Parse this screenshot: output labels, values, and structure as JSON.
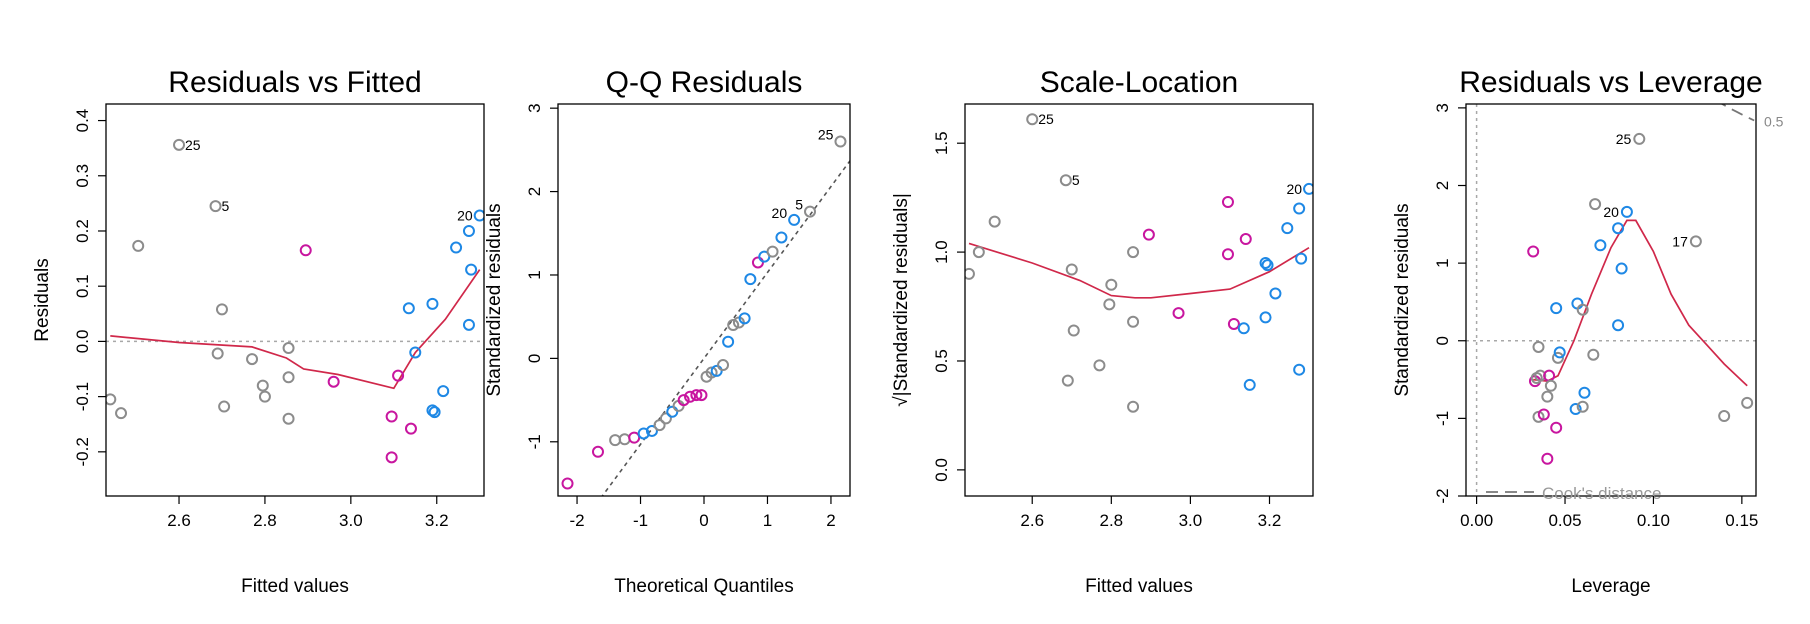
{
  "colors": {
    "grey": "#8c8c8c",
    "magenta": "#c8169f",
    "blue": "#1e88e5",
    "smooth": "#d0284a",
    "reference_line": "#a8a8a8",
    "cooks_distance": "#777777"
  },
  "chart_data": [
    {
      "type": "scatter",
      "title": "Residuals vs Fitted",
      "xlabel": "Fitted values",
      "ylabel": "Residuals",
      "xlim": [
        2.43,
        3.31
      ],
      "ylim": [
        -0.28,
        0.43
      ],
      "xticks": [
        "2.6",
        "2.8",
        "3.0",
        "3.2"
      ],
      "yticks": [
        "-0.2",
        "-0.1",
        "0.0",
        "0.1",
        "0.2",
        "0.3",
        "0.4"
      ],
      "reference_line_y": 0,
      "points": [
        {
          "x": 2.44,
          "y": -0.105,
          "g": "grey"
        },
        {
          "x": 2.465,
          "y": -0.13,
          "g": "grey"
        },
        {
          "x": 2.505,
          "y": 0.173,
          "g": "grey"
        },
        {
          "x": 2.6,
          "y": 0.356,
          "g": "grey",
          "label": "25"
        },
        {
          "x": 2.685,
          "y": 0.245,
          "g": "grey",
          "label": "5"
        },
        {
          "x": 2.69,
          "y": -0.022,
          "g": "grey"
        },
        {
          "x": 2.7,
          "y": 0.058,
          "g": "grey"
        },
        {
          "x": 2.705,
          "y": -0.118,
          "g": "grey"
        },
        {
          "x": 2.77,
          "y": -0.032,
          "g": "grey"
        },
        {
          "x": 2.795,
          "y": -0.08,
          "g": "grey"
        },
        {
          "x": 2.8,
          "y": -0.1,
          "g": "grey"
        },
        {
          "x": 2.855,
          "y": -0.012,
          "g": "grey"
        },
        {
          "x": 2.855,
          "y": -0.065,
          "g": "grey"
        },
        {
          "x": 2.855,
          "y": -0.14,
          "g": "grey"
        },
        {
          "x": 2.895,
          "y": 0.165,
          "g": "magenta"
        },
        {
          "x": 2.96,
          "y": -0.073,
          "g": "magenta"
        },
        {
          "x": 3.095,
          "y": -0.136,
          "g": "magenta"
        },
        {
          "x": 3.095,
          "y": -0.21,
          "g": "magenta"
        },
        {
          "x": 3.11,
          "y": -0.062,
          "g": "magenta"
        },
        {
          "x": 3.14,
          "y": -0.158,
          "g": "magenta"
        },
        {
          "x": 3.135,
          "y": 0.06,
          "g": "blue"
        },
        {
          "x": 3.15,
          "y": -0.02,
          "g": "blue"
        },
        {
          "x": 3.19,
          "y": 0.068,
          "g": "blue"
        },
        {
          "x": 3.19,
          "y": -0.125,
          "g": "blue"
        },
        {
          "x": 3.195,
          "y": -0.128,
          "g": "blue"
        },
        {
          "x": 3.215,
          "y": -0.09,
          "g": "blue"
        },
        {
          "x": 3.245,
          "y": 0.17,
          "g": "blue"
        },
        {
          "x": 3.275,
          "y": 0.2,
          "g": "blue"
        },
        {
          "x": 3.28,
          "y": 0.13,
          "g": "blue"
        },
        {
          "x": 3.275,
          "y": 0.03,
          "g": "blue"
        },
        {
          "x": 3.3,
          "y": 0.228,
          "g": "blue",
          "label": "20"
        }
      ],
      "smooth": [
        [
          2.44,
          0.01
        ],
        [
          2.6,
          -0.002
        ],
        [
          2.77,
          -0.01
        ],
        [
          2.85,
          -0.03
        ],
        [
          2.89,
          -0.05
        ],
        [
          2.97,
          -0.06
        ],
        [
          3.1,
          -0.085
        ],
        [
          3.15,
          -0.02
        ],
        [
          3.22,
          0.04
        ],
        [
          3.3,
          0.13
        ]
      ]
    },
    {
      "type": "scatter",
      "title": "Q-Q Residuals",
      "xlabel": "Theoretical Quantiles",
      "ylabel": "Standardized residuals",
      "xlim": [
        -2.3,
        2.3
      ],
      "ylim": [
        -1.65,
        3.05
      ],
      "xticks": [
        "-2",
        "-1",
        "0",
        "1",
        "2"
      ],
      "yticks": [
        "-1",
        "0",
        "1",
        "2",
        "3"
      ],
      "qq_line": {
        "slope": 1.03,
        "intercept": 0.0
      },
      "points": [
        {
          "x": -2.15,
          "y": -1.5,
          "g": "magenta"
        },
        {
          "x": -1.67,
          "y": -1.12,
          "g": "magenta"
        },
        {
          "x": -1.4,
          "y": -0.98,
          "g": "grey"
        },
        {
          "x": -1.25,
          "y": -0.97,
          "g": "grey"
        },
        {
          "x": -1.1,
          "y": -0.95,
          "g": "magenta"
        },
        {
          "x": -0.95,
          "y": -0.9,
          "g": "blue"
        },
        {
          "x": -0.82,
          "y": -0.87,
          "g": "blue"
        },
        {
          "x": -0.7,
          "y": -0.8,
          "g": "grey"
        },
        {
          "x": -0.6,
          "y": -0.72,
          "g": "grey"
        },
        {
          "x": -0.5,
          "y": -0.64,
          "g": "blue"
        },
        {
          "x": -0.4,
          "y": -0.57,
          "g": "grey"
        },
        {
          "x": -0.32,
          "y": -0.5,
          "g": "magenta"
        },
        {
          "x": -0.22,
          "y": -0.46,
          "g": "magenta"
        },
        {
          "x": -0.12,
          "y": -0.44,
          "g": "magenta"
        },
        {
          "x": -0.04,
          "y": -0.44,
          "g": "magenta"
        },
        {
          "x": 0.04,
          "y": -0.22,
          "g": "grey"
        },
        {
          "x": 0.12,
          "y": -0.17,
          "g": "grey"
        },
        {
          "x": 0.2,
          "y": -0.15,
          "g": "blue"
        },
        {
          "x": 0.3,
          "y": -0.08,
          "g": "grey"
        },
        {
          "x": 0.38,
          "y": 0.2,
          "g": "blue"
        },
        {
          "x": 0.46,
          "y": 0.4,
          "g": "grey"
        },
        {
          "x": 0.55,
          "y": 0.43,
          "g": "grey"
        },
        {
          "x": 0.64,
          "y": 0.48,
          "g": "blue"
        },
        {
          "x": 0.73,
          "y": 0.95,
          "g": "blue"
        },
        {
          "x": 0.85,
          "y": 1.15,
          "g": "magenta"
        },
        {
          "x": 0.95,
          "y": 1.22,
          "g": "blue"
        },
        {
          "x": 1.08,
          "y": 1.28,
          "g": "grey"
        },
        {
          "x": 1.22,
          "y": 1.45,
          "g": "blue"
        },
        {
          "x": 1.42,
          "y": 1.66,
          "g": "blue",
          "label": "20"
        },
        {
          "x": 1.67,
          "y": 1.76,
          "g": "grey",
          "label": "5"
        },
        {
          "x": 2.15,
          "y": 2.6,
          "g": "grey",
          "label": "25"
        }
      ]
    },
    {
      "type": "scatter",
      "title": "Scale-Location",
      "xlabel": "Fitted values",
      "ylabel": "√|Standardized residuals|",
      "xlim": [
        2.43,
        3.31
      ],
      "ylim": [
        -0.12,
        1.68
      ],
      "xticks": [
        "2.6",
        "2.8",
        "3.0",
        "3.2"
      ],
      "yticks": [
        "0.0",
        "0.5",
        "1.0",
        "1.5"
      ],
      "points": [
        {
          "x": 2.44,
          "y": 0.9,
          "g": "grey"
        },
        {
          "x": 2.465,
          "y": 1.0,
          "g": "grey"
        },
        {
          "x": 2.505,
          "y": 1.14,
          "g": "grey"
        },
        {
          "x": 2.6,
          "y": 1.61,
          "g": "grey",
          "label": "25"
        },
        {
          "x": 2.685,
          "y": 1.33,
          "g": "grey",
          "label": "5"
        },
        {
          "x": 2.69,
          "y": 0.41,
          "g": "grey"
        },
        {
          "x": 2.7,
          "y": 0.92,
          "g": "grey"
        },
        {
          "x": 2.705,
          "y": 0.64,
          "g": "grey"
        },
        {
          "x": 2.77,
          "y": 0.48,
          "g": "grey"
        },
        {
          "x": 2.795,
          "y": 0.76,
          "g": "grey"
        },
        {
          "x": 2.8,
          "y": 0.85,
          "g": "grey"
        },
        {
          "x": 2.855,
          "y": 1.0,
          "g": "grey"
        },
        {
          "x": 2.855,
          "y": 0.68,
          "g": "grey"
        },
        {
          "x": 2.855,
          "y": 0.29,
          "g": "grey"
        },
        {
          "x": 2.895,
          "y": 1.08,
          "g": "magenta"
        },
        {
          "x": 2.97,
          "y": 0.72,
          "g": "magenta"
        },
        {
          "x": 3.095,
          "y": 1.23,
          "g": "magenta"
        },
        {
          "x": 3.095,
          "y": 0.99,
          "g": "magenta"
        },
        {
          "x": 3.11,
          "y": 0.67,
          "g": "magenta"
        },
        {
          "x": 3.14,
          "y": 1.06,
          "g": "magenta"
        },
        {
          "x": 3.135,
          "y": 0.65,
          "g": "blue"
        },
        {
          "x": 3.15,
          "y": 0.39,
          "g": "blue"
        },
        {
          "x": 3.19,
          "y": 0.95,
          "g": "blue"
        },
        {
          "x": 3.19,
          "y": 0.7,
          "g": "blue"
        },
        {
          "x": 3.195,
          "y": 0.94,
          "g": "blue"
        },
        {
          "x": 3.215,
          "y": 0.81,
          "g": "blue"
        },
        {
          "x": 3.245,
          "y": 1.11,
          "g": "blue"
        },
        {
          "x": 3.275,
          "y": 1.2,
          "g": "blue"
        },
        {
          "x": 3.28,
          "y": 0.97,
          "g": "blue"
        },
        {
          "x": 3.275,
          "y": 0.46,
          "g": "blue"
        },
        {
          "x": 3.3,
          "y": 1.29,
          "g": "blue",
          "label": "20"
        }
      ],
      "smooth": [
        [
          2.44,
          1.04
        ],
        [
          2.6,
          0.95
        ],
        [
          2.72,
          0.87
        ],
        [
          2.8,
          0.8
        ],
        [
          2.86,
          0.79
        ],
        [
          2.9,
          0.79
        ],
        [
          3.0,
          0.81
        ],
        [
          3.1,
          0.83
        ],
        [
          3.2,
          0.91
        ],
        [
          3.3,
          1.02
        ]
      ]
    },
    {
      "type": "scatter",
      "title": "Residuals vs Leverage",
      "xlabel": "Leverage",
      "ylabel": "Standardized residuals",
      "xlim": [
        -0.006,
        0.158
      ],
      "ylim": [
        -2.0,
        3.05
      ],
      "xticks": [
        "0.00",
        "0.05",
        "0.10",
        "0.15"
      ],
      "yticks": [
        "-2",
        "-1",
        "0",
        "1",
        "2",
        "3"
      ],
      "reference_line_y": 0,
      "reference_line_x": 0,
      "cooks_contour_label": "0.5",
      "legend_text": "Cook's distance",
      "points": [
        {
          "x": 0.032,
          "y": 1.15,
          "g": "magenta"
        },
        {
          "x": 0.033,
          "y": -0.52,
          "g": "magenta"
        },
        {
          "x": 0.034,
          "y": -0.48,
          "g": "grey"
        },
        {
          "x": 0.035,
          "y": -0.08,
          "g": "grey"
        },
        {
          "x": 0.036,
          "y": -0.45,
          "g": "grey"
        },
        {
          "x": 0.035,
          "y": -0.98,
          "g": "grey"
        },
        {
          "x": 0.038,
          "y": -0.95,
          "g": "magenta"
        },
        {
          "x": 0.04,
          "y": -0.72,
          "g": "grey"
        },
        {
          "x": 0.041,
          "y": -0.45,
          "g": "magenta"
        },
        {
          "x": 0.04,
          "y": -1.52,
          "g": "magenta"
        },
        {
          "x": 0.042,
          "y": -0.58,
          "g": "grey"
        },
        {
          "x": 0.045,
          "y": -1.12,
          "g": "magenta"
        },
        {
          "x": 0.045,
          "y": 0.42,
          "g": "blue"
        },
        {
          "x": 0.046,
          "y": -0.22,
          "g": "grey"
        },
        {
          "x": 0.047,
          "y": -0.15,
          "g": "blue"
        },
        {
          "x": 0.056,
          "y": -0.88,
          "g": "blue"
        },
        {
          "x": 0.057,
          "y": 0.48,
          "g": "blue"
        },
        {
          "x": 0.06,
          "y": 0.4,
          "g": "grey"
        },
        {
          "x": 0.06,
          "y": -0.85,
          "g": "grey"
        },
        {
          "x": 0.061,
          "y": -0.67,
          "g": "blue"
        },
        {
          "x": 0.066,
          "y": -0.18,
          "g": "grey"
        },
        {
          "x": 0.067,
          "y": 1.76,
          "g": "grey"
        },
        {
          "x": 0.07,
          "y": 1.23,
          "g": "blue"
        },
        {
          "x": 0.08,
          "y": 0.2,
          "g": "blue"
        },
        {
          "x": 0.08,
          "y": 1.45,
          "g": "blue"
        },
        {
          "x": 0.082,
          "y": 0.93,
          "g": "blue"
        },
        {
          "x": 0.085,
          "y": 1.66,
          "g": "blue",
          "label": "20"
        },
        {
          "x": 0.092,
          "y": 2.6,
          "g": "grey",
          "label": "25"
        },
        {
          "x": 0.124,
          "y": 1.28,
          "g": "grey",
          "label": "17"
        },
        {
          "x": 0.14,
          "y": -0.97,
          "g": "grey"
        },
        {
          "x": 0.153,
          "y": -0.8,
          "g": "grey"
        }
      ],
      "smooth": [
        [
          0.032,
          -0.5
        ],
        [
          0.04,
          -0.52
        ],
        [
          0.046,
          -0.45
        ],
        [
          0.055,
          0.0
        ],
        [
          0.065,
          0.6
        ],
        [
          0.076,
          1.2
        ],
        [
          0.085,
          1.55
        ],
        [
          0.09,
          1.55
        ],
        [
          0.1,
          1.15
        ],
        [
          0.11,
          0.6
        ],
        [
          0.12,
          0.2
        ],
        [
          0.13,
          -0.05
        ],
        [
          0.14,
          -0.3
        ],
        [
          0.153,
          -0.58
        ]
      ]
    }
  ]
}
